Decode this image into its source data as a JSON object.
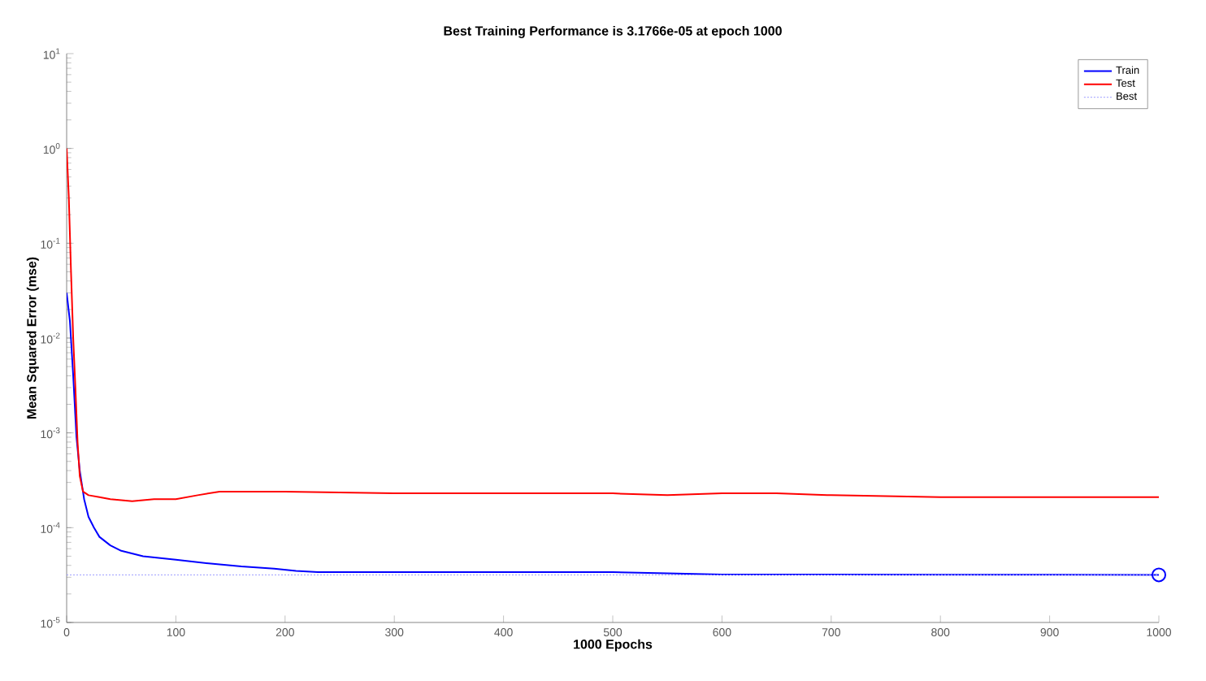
{
  "chart_data": {
    "type": "line",
    "title": "Best Training Performance is 3.1766e-05 at epoch 1000",
    "xlabel": "1000 Epochs",
    "ylabel": "Mean Squared Error  (mse)",
    "log": "y",
    "legend": "top right",
    "xlim": [
      0,
      1000
    ],
    "xticks": [
      0,
      100,
      200,
      300,
      400,
      500,
      600,
      700,
      800,
      900,
      1000
    ],
    "ylim": [
      1e-05,
      10
    ],
    "yticks": [
      {
        "value": 1e-05,
        "label": "10$^{-5}$"
      },
      {
        "value": 0.0001,
        "label": "10$^{-4}$"
      },
      {
        "value": 0.001,
        "label": "10$^{-3}$"
      },
      {
        "value": 0.01,
        "label": "10$^{-2}$"
      },
      {
        "value": 0.1,
        "label": "10$^{-1}$"
      },
      {
        "value": 1,
        "label": "10$^{0}$"
      },
      {
        "value": 10,
        "label": "10$^{1}$"
      }
    ],
    "series": [
      {
        "name": "Train",
        "color": "#0000ff",
        "x": [
          0,
          3,
          6,
          9,
          12,
          16,
          20,
          25,
          30,
          40,
          50,
          70,
          100,
          130,
          160,
          190,
          210,
          230,
          300,
          400,
          500,
          550,
          600,
          700,
          800,
          900,
          1000
        ],
        "values": [
          0.03,
          0.015,
          0.004,
          0.0009,
          0.0004,
          0.0002,
          0.00013,
          0.0001,
          8e-05,
          6.5e-05,
          5.7e-05,
          5e-05,
          4.6e-05,
          4.2e-05,
          3.9e-05,
          3.7e-05,
          3.5e-05,
          3.4e-05,
          3.4e-05,
          3.4e-05,
          3.4e-05,
          3.3e-05,
          3.2e-05,
          3.2e-05,
          3.18e-05,
          3.18e-05,
          3.1766e-05
        ]
      },
      {
        "name": "Test",
        "color": "#ff0000",
        "x": [
          0,
          2,
          4,
          6,
          8,
          10,
          12,
          15,
          20,
          30,
          40,
          60,
          80,
          100,
          120,
          140,
          160,
          200,
          300,
          400,
          500,
          550,
          600,
          650,
          700,
          800,
          900,
          1000
        ],
        "values": [
          1,
          0.3,
          0.05,
          0.01,
          0.003,
          0.0008,
          0.00035,
          0.00024,
          0.00022,
          0.00021,
          0.0002,
          0.00019,
          0.0002,
          0.0002,
          0.00022,
          0.00024,
          0.00024,
          0.00024,
          0.00023,
          0.00023,
          0.00023,
          0.00022,
          0.00023,
          0.00023,
          0.00022,
          0.00021,
          0.00021,
          0.00021
        ]
      },
      {
        "name": "Best",
        "color": "#9999ff",
        "line_style": "dotted",
        "x": [
          0,
          1000
        ],
        "values": [
          3.1766e-05,
          3.1766e-05
        ]
      },
      {
        "type": "scatter",
        "marker": "circle",
        "color": "#0000ff",
        "x": [
          1000
        ],
        "values": [
          3.1766e-05
        ]
      }
    ]
  }
}
